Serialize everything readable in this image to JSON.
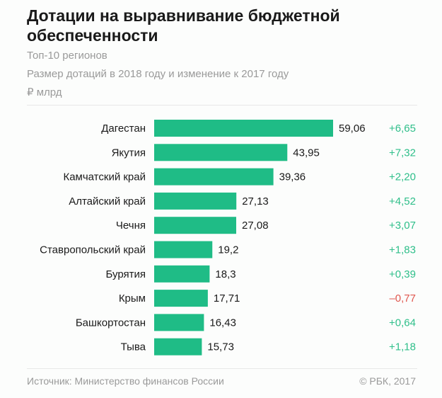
{
  "title": "Дотации на выравнивание бюджетной обеспеченности",
  "subtitle1": "Топ-10 регионов",
  "subtitle2": "Размер дотаций в 2018 году и изменение к 2017 году",
  "unit": "₽ млрд",
  "source": "Источник: Министерство финансов России",
  "copyright": "© РБК, 2017",
  "colors": {
    "bar": "#1fbc86",
    "positive": "#2fbf8a",
    "negative": "#e0584f"
  },
  "chart_data": {
    "type": "bar",
    "orientation": "horizontal",
    "title": "Дотации на выравнивание бюджетной обеспеченности",
    "categories": [
      "Дагестан",
      "Якутия",
      "Камчатский край",
      "Алтайский край",
      "Чечня",
      "Ставропольский край",
      "Бурятия",
      "Крым",
      "Башкортостан",
      "Тыва"
    ],
    "values": [
      59.06,
      43.95,
      39.36,
      27.13,
      27.08,
      19.2,
      18.3,
      17.71,
      16.43,
      15.73
    ],
    "value_labels": [
      "59,06",
      "43,95",
      "39,36",
      "27,13",
      "27,08",
      "19,2",
      "18,3",
      "17,71",
      "16,43",
      "15,73"
    ],
    "changes": [
      6.65,
      7.32,
      2.2,
      4.52,
      3.07,
      1.83,
      0.39,
      -0.77,
      0.64,
      1.18
    ],
    "change_labels": [
      "+6,65",
      "+7,32",
      "+2,20",
      "+4,52",
      "+3,07",
      "+1,83",
      "+0,39",
      "–0,77",
      "+0,64",
      "+1,18"
    ],
    "xlim": [
      0,
      59.06
    ],
    "grid": false
  }
}
